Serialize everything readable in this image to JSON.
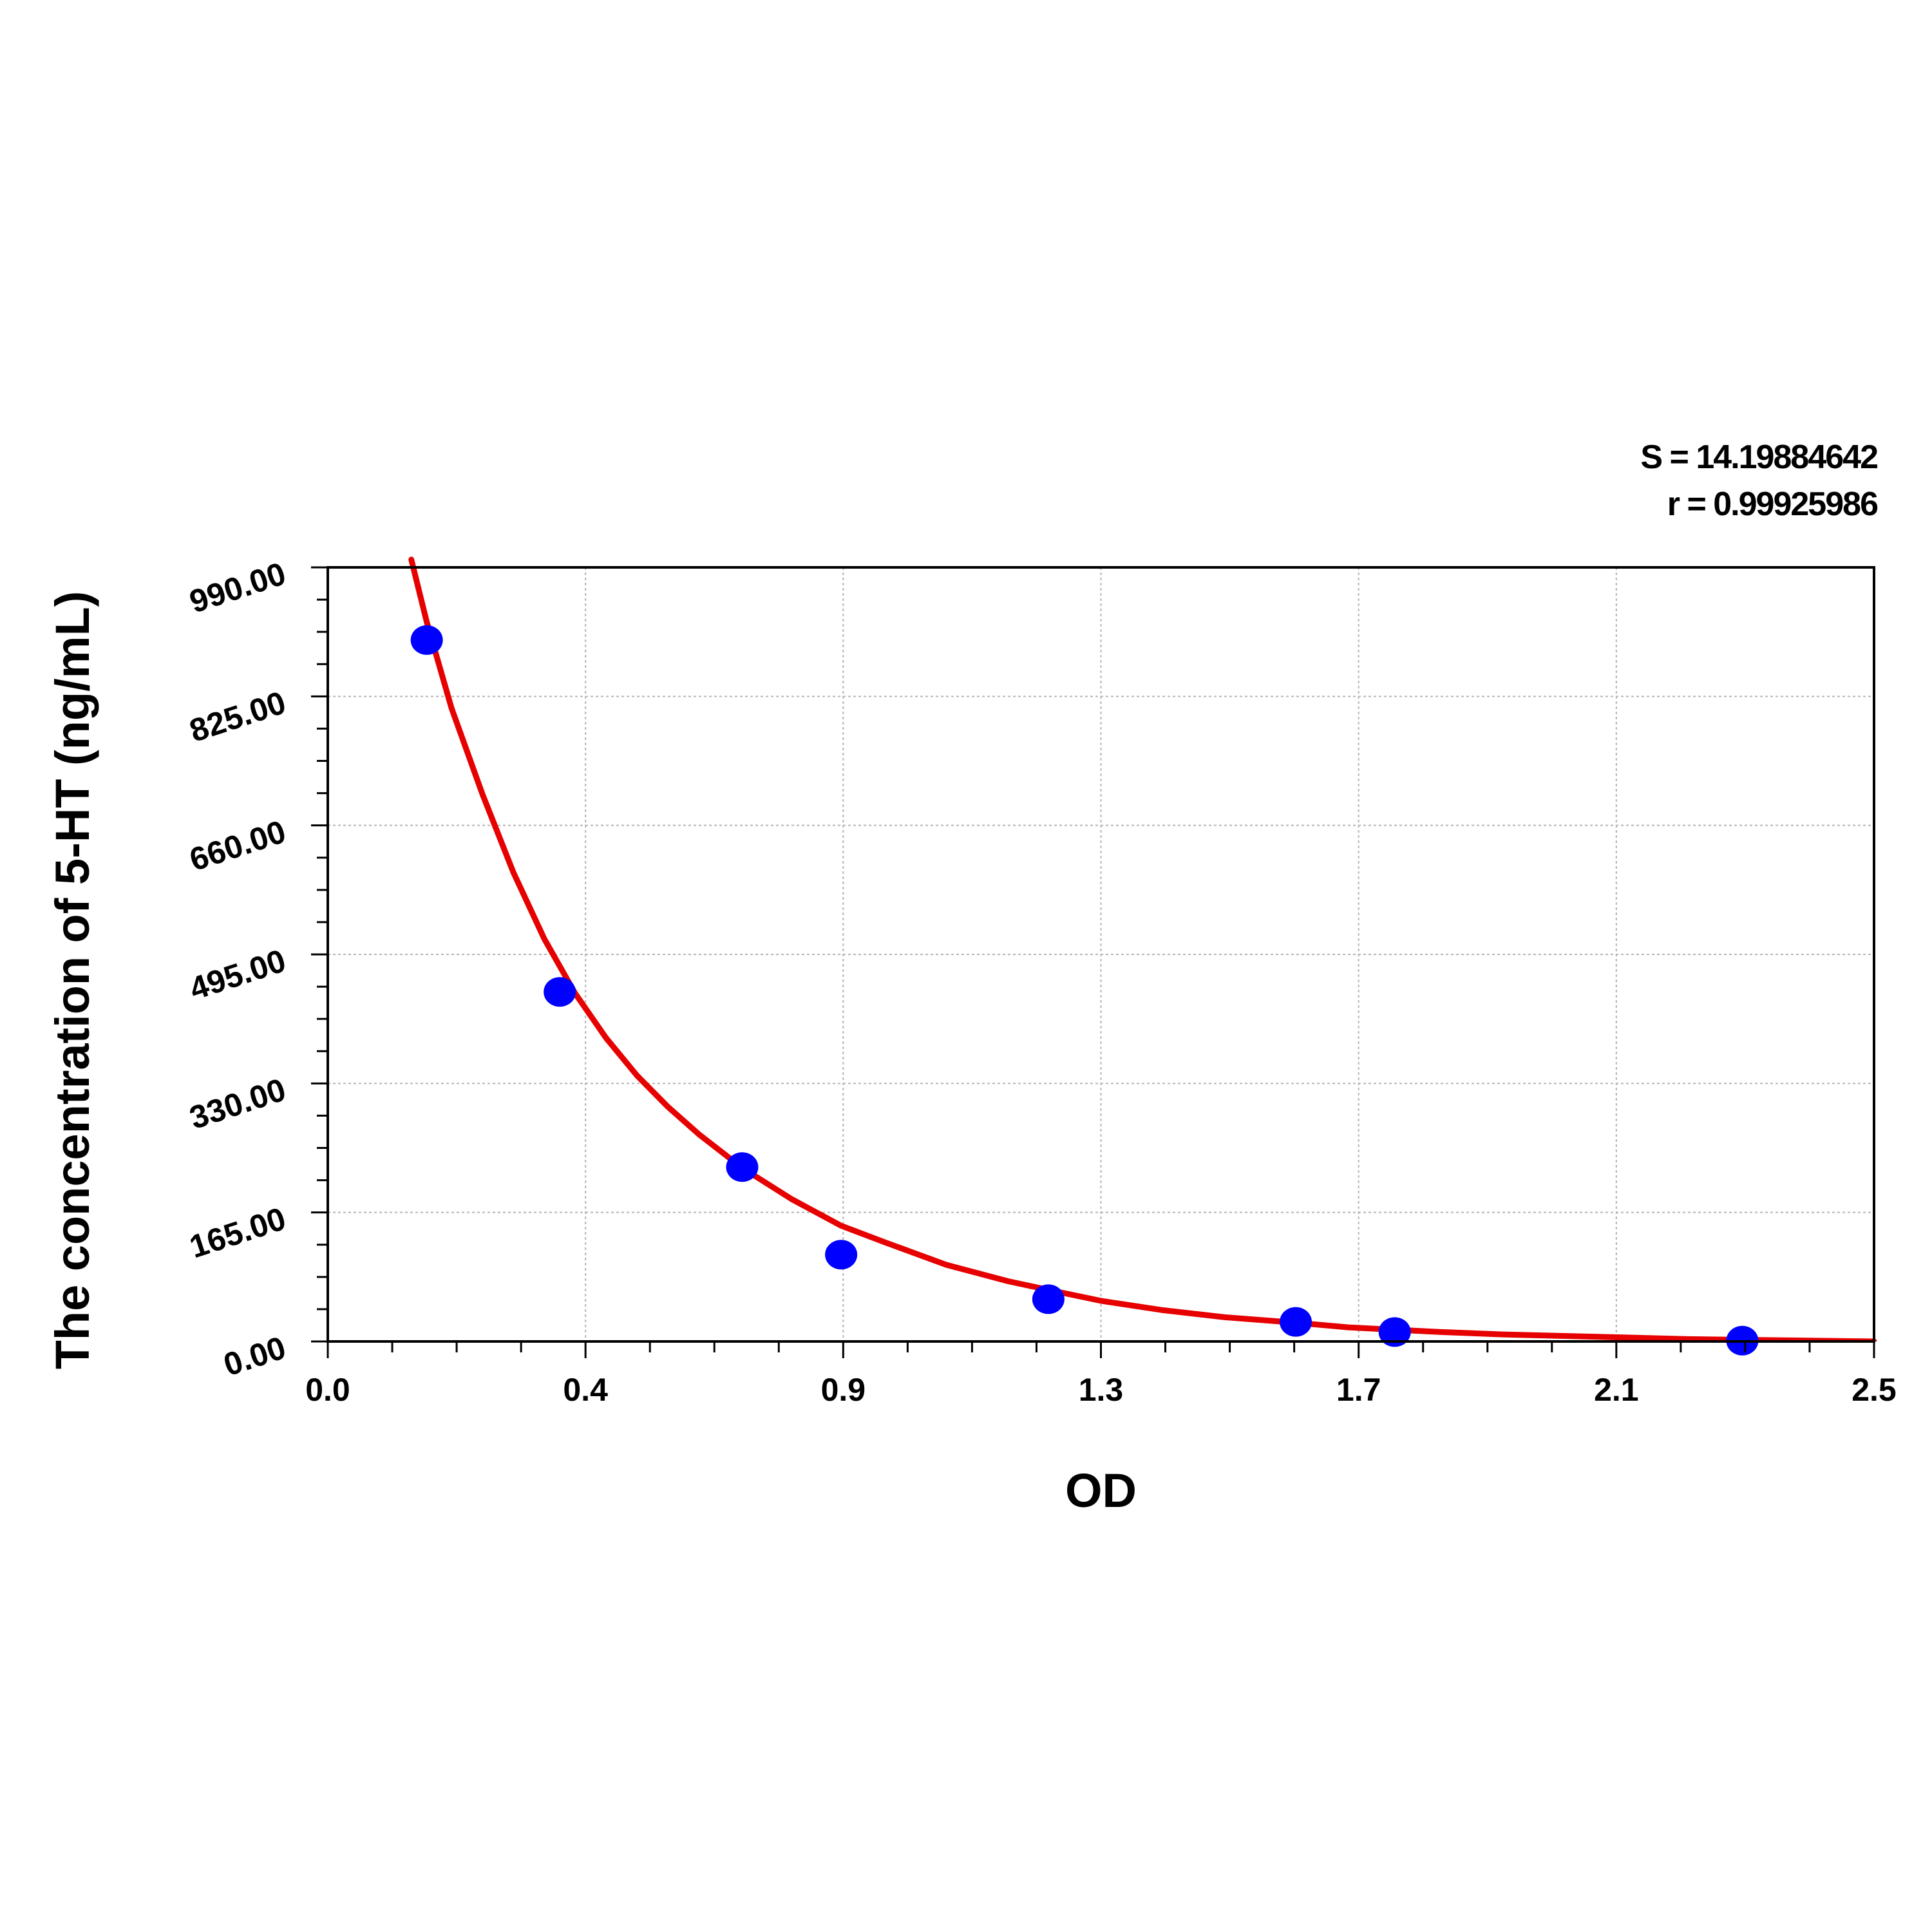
{
  "chart_data": {
    "type": "scatter",
    "title": "",
    "xlabel": "OD",
    "ylabel": "The concentration of 5-HT (ng/mL)",
    "xlim": [
      0.0,
      2.5
    ],
    "ylim": [
      0,
      990
    ],
    "x_ticks": [
      "0.0",
      "0.4",
      "0.9",
      "1.3",
      "1.7",
      "2.1",
      "2.5"
    ],
    "y_ticks": [
      "0.00",
      "165.00",
      "330.00",
      "495.00",
      "660.00",
      "825.00",
      "990.00"
    ],
    "grid": true,
    "stats": {
      "s_label": "S = 14.19884642",
      "r_label": "r = 0.99925986"
    },
    "series": [
      {
        "kind": "points",
        "color": "#0000ff",
        "points": [
          {
            "x": 0.16,
            "y": 897
          },
          {
            "x": 0.375,
            "y": 447
          },
          {
            "x": 0.67,
            "y": 223
          },
          {
            "x": 0.83,
            "y": 111
          },
          {
            "x": 1.165,
            "y": 54
          },
          {
            "x": 1.565,
            "y": 25
          },
          {
            "x": 1.725,
            "y": 12
          },
          {
            "x": 2.287,
            "y": 1
          }
        ]
      },
      {
        "kind": "fit-curve",
        "color": "#e60000",
        "points": [
          {
            "x": 0.135,
            "y": 1000
          },
          {
            "x": 0.16,
            "y": 920
          },
          {
            "x": 0.2,
            "y": 810
          },
          {
            "x": 0.25,
            "y": 700
          },
          {
            "x": 0.3,
            "y": 600
          },
          {
            "x": 0.35,
            "y": 515
          },
          {
            "x": 0.4,
            "y": 445
          },
          {
            "x": 0.45,
            "y": 388
          },
          {
            "x": 0.5,
            "y": 340
          },
          {
            "x": 0.55,
            "y": 300
          },
          {
            "x": 0.6,
            "y": 265
          },
          {
            "x": 0.67,
            "y": 222
          },
          {
            "x": 0.75,
            "y": 182
          },
          {
            "x": 0.83,
            "y": 148
          },
          {
            "x": 0.9,
            "y": 127
          },
          {
            "x": 1.0,
            "y": 98
          },
          {
            "x": 1.1,
            "y": 77
          },
          {
            "x": 1.165,
            "y": 66
          },
          {
            "x": 1.25,
            "y": 52
          },
          {
            "x": 1.35,
            "y": 40
          },
          {
            "x": 1.45,
            "y": 31
          },
          {
            "x": 1.565,
            "y": 24
          },
          {
            "x": 1.65,
            "y": 18
          },
          {
            "x": 1.725,
            "y": 15
          },
          {
            "x": 1.8,
            "y": 12
          },
          {
            "x": 1.9,
            "y": 9
          },
          {
            "x": 2.0,
            "y": 7
          },
          {
            "x": 2.1,
            "y": 5
          },
          {
            "x": 2.2,
            "y": 3
          },
          {
            "x": 2.3,
            "y": 2
          },
          {
            "x": 2.4,
            "y": 1
          },
          {
            "x": 2.5,
            "y": 0
          }
        ]
      }
    ]
  }
}
